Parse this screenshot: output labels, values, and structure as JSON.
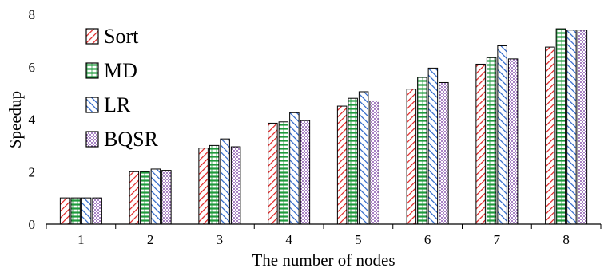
{
  "chart_data": {
    "type": "bar",
    "title": "",
    "xlabel": "The number of nodes",
    "ylabel": "Speedup",
    "ylim": [
      0,
      8
    ],
    "yticks": [
      0,
      2,
      4,
      6,
      8
    ],
    "categories": [
      "1",
      "2",
      "3",
      "4",
      "5",
      "6",
      "7",
      "8"
    ],
    "legend_position": "top-left",
    "grid": false,
    "series": [
      {
        "name": "Sort",
        "pattern": "diagonal-red",
        "color": "#e02020",
        "values": [
          1.0,
          2.0,
          2.9,
          3.85,
          4.5,
          5.15,
          6.1,
          6.75
        ]
      },
      {
        "name": "MD",
        "pattern": "horizontal-green",
        "color": "#1f9a3c",
        "values": [
          1.0,
          2.0,
          3.0,
          3.9,
          4.8,
          5.6,
          6.35,
          7.45
        ]
      },
      {
        "name": "LR",
        "pattern": "diagonal-blue",
        "color": "#2a64c8",
        "values": [
          1.0,
          2.1,
          3.25,
          4.25,
          5.05,
          5.95,
          6.8,
          7.4
        ]
      },
      {
        "name": "BQSR",
        "pattern": "dots-purple",
        "color": "#6a2a9a",
        "values": [
          1.0,
          2.05,
          2.95,
          3.95,
          4.7,
          5.4,
          6.3,
          7.4
        ]
      }
    ]
  }
}
